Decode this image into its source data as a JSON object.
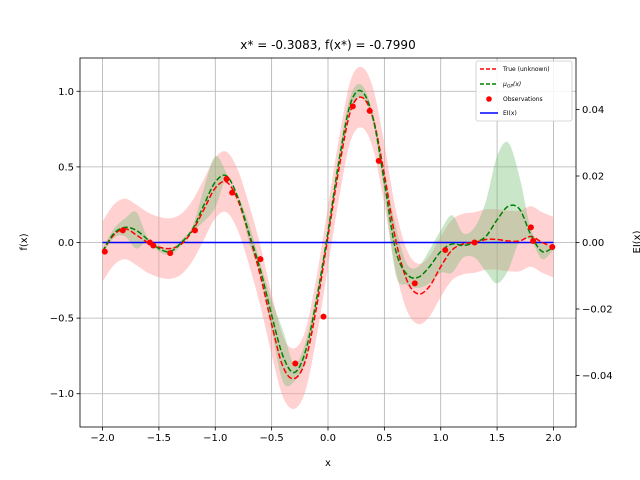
{
  "chart_data": {
    "type": "line",
    "title": "x* = -0.3083, f(x*) = -0.7990",
    "xlabel": "x",
    "ylabel": "f(x)",
    "ylabel_right": "EI(x)",
    "xlim": [
      -2.2,
      2.2
    ],
    "ylim": [
      -1.22,
      1.22
    ],
    "ylim_right": [
      -0.0555,
      0.0555
    ],
    "xticks": [
      -2.0,
      -1.5,
      -1.0,
      -0.5,
      0.0,
      0.5,
      1.0,
      1.5,
      2.0
    ],
    "xtick_labels": [
      "−2.0",
      "−1.5",
      "−1.0",
      "−0.5",
      "0.0",
      "0.5",
      "1.0",
      "1.5",
      "2.0"
    ],
    "yticks": [
      -1.0,
      -0.5,
      0.0,
      0.5,
      1.0
    ],
    "ytick_labels": [
      "−1.0",
      "−0.5",
      "0.0",
      "0.5",
      "1.0"
    ],
    "yticks_right": [
      -0.04,
      -0.02,
      0.0,
      0.02,
      0.04
    ],
    "ytick_labels_right": [
      "−0.04",
      "−0.02",
      "0.00",
      "0.02",
      "0.04"
    ],
    "grid": true,
    "legend_position": "top-right",
    "colors": {
      "true": "#ff0000",
      "true_band": "#ff9999",
      "gp": "#008000",
      "gp_band": "#77c077",
      "obs": "#ff0000",
      "ei": "#0000ff"
    },
    "series": [
      {
        "name": "True (unknown)",
        "style": "dashed",
        "x": [
          -2.0,
          -1.9,
          -1.8,
          -1.7,
          -1.6,
          -1.5,
          -1.4,
          -1.3,
          -1.2,
          -1.1,
          -1.0,
          -0.9,
          -0.8,
          -0.7,
          -0.6,
          -0.5,
          -0.4,
          -0.3,
          -0.2,
          -0.1,
          0.0,
          0.1,
          0.2,
          0.3,
          0.4,
          0.5,
          0.6,
          0.7,
          0.8,
          0.9,
          1.0,
          1.1,
          1.2,
          1.3,
          1.4,
          1.5,
          1.6,
          1.7,
          1.8,
          1.9,
          2.0
        ],
        "y": [
          -0.06,
          0.05,
          0.09,
          0.05,
          0.0,
          -0.03,
          -0.04,
          -0.01,
          0.08,
          0.22,
          0.36,
          0.4,
          0.28,
          0.05,
          -0.22,
          -0.54,
          -0.82,
          -0.9,
          -0.78,
          -0.42,
          0.04,
          0.5,
          0.87,
          0.96,
          0.82,
          0.45,
          0.02,
          -0.25,
          -0.34,
          -0.29,
          -0.16,
          -0.05,
          -0.01,
          0.0,
          0.02,
          0.02,
          0.01,
          0.01,
          0.04,
          0.0,
          -0.03
        ],
        "band": 0.2
      },
      {
        "name": "μ_GP(x)",
        "style": "dashed",
        "x": [
          -2.0,
          -1.9,
          -1.8,
          -1.7,
          -1.6,
          -1.5,
          -1.4,
          -1.3,
          -1.2,
          -1.1,
          -1.0,
          -0.9,
          -0.8,
          -0.7,
          -0.6,
          -0.5,
          -0.4,
          -0.3,
          -0.2,
          -0.1,
          0.0,
          0.1,
          0.2,
          0.3,
          0.4,
          0.5,
          0.6,
          0.7,
          0.8,
          0.9,
          1.0,
          1.1,
          1.2,
          1.3,
          1.4,
          1.5,
          1.6,
          1.7,
          1.8,
          1.9,
          2.0
        ],
        "y": [
          -0.06,
          0.06,
          0.1,
          0.08,
          0.02,
          -0.04,
          -0.06,
          0.0,
          0.09,
          0.25,
          0.4,
          0.44,
          0.3,
          0.06,
          -0.18,
          -0.48,
          -0.75,
          -0.86,
          -0.72,
          -0.37,
          0.07,
          0.55,
          0.92,
          1.0,
          0.82,
          0.4,
          -0.05,
          -0.21,
          -0.23,
          -0.16,
          -0.06,
          -0.01,
          -0.02,
          0.0,
          0.04,
          0.15,
          0.24,
          0.22,
          0.05,
          -0.06,
          -0.03
        ],
        "band_upper": [
          -0.04,
          0.09,
          0.16,
          0.2,
          0.03,
          -0.02,
          -0.04,
          0.02,
          0.11,
          0.36,
          0.57,
          0.46,
          0.31,
          0.12,
          -0.14,
          -0.38,
          -0.58,
          -0.8,
          -0.66,
          -0.33,
          0.1,
          0.6,
          0.97,
          1.04,
          0.85,
          0.47,
          0.11,
          -0.14,
          -0.16,
          -0.05,
          0.08,
          0.18,
          0.06,
          0.1,
          0.27,
          0.57,
          0.66,
          0.43,
          0.09,
          -0.01,
          -0.01
        ],
        "band_lower": [
          -0.08,
          0.03,
          0.04,
          -0.04,
          0.01,
          -0.06,
          -0.08,
          -0.02,
          0.07,
          0.14,
          0.23,
          0.42,
          0.29,
          0.0,
          -0.22,
          -0.58,
          -0.92,
          -0.92,
          -0.78,
          -0.41,
          0.04,
          0.5,
          0.87,
          0.96,
          0.79,
          0.33,
          -0.21,
          -0.28,
          -0.3,
          -0.27,
          -0.2,
          -0.2,
          -0.1,
          -0.1,
          -0.19,
          -0.27,
          -0.18,
          0.01,
          0.01,
          -0.11,
          -0.05
        ]
      },
      {
        "name": "Observations",
        "style": "points",
        "x": [
          -1.98,
          -1.82,
          -1.58,
          -1.55,
          -1.4,
          -1.18,
          -0.9,
          -0.85,
          -0.6,
          -0.29,
          -0.04,
          0.22,
          0.37,
          0.45,
          0.77,
          1.04,
          1.3,
          1.8,
          1.82,
          1.99
        ],
        "y": [
          -0.06,
          0.08,
          0.0,
          -0.02,
          -0.07,
          0.08,
          0.42,
          0.33,
          -0.11,
          -0.8,
          -0.49,
          0.9,
          0.87,
          0.54,
          -0.27,
          -0.05,
          0.0,
          0.1,
          0.01,
          -0.03
        ]
      },
      {
        "name": "EI(x)",
        "style": "solid",
        "axis": "right",
        "x": [
          -2.0,
          2.0
        ],
        "y": [
          0.0,
          0.0
        ]
      }
    ],
    "legend_entries": [
      "True (unknown)",
      "μ_GP(x)",
      "Observations",
      "EI(x)"
    ]
  }
}
